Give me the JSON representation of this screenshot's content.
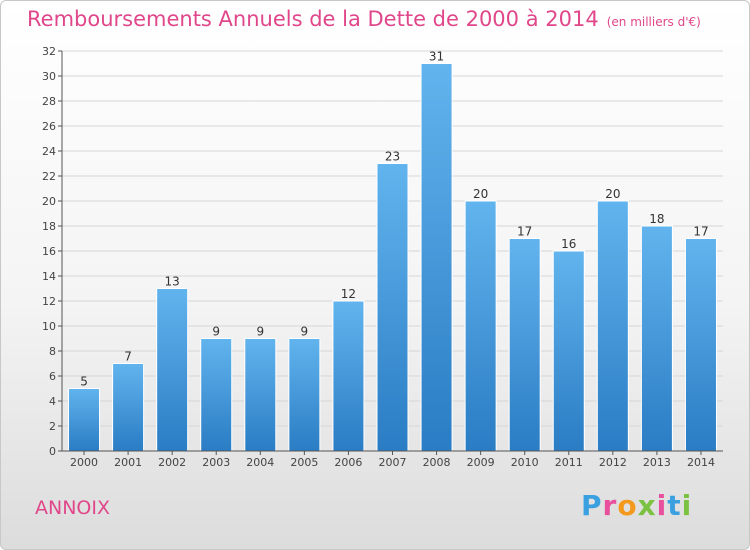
{
  "header": {
    "title": "Remboursements Annuels de la Dette de 2000 à 2014",
    "unit": "(en milliers d'€)"
  },
  "footer": {
    "town": "ANNOIX",
    "brand": "Proxiti",
    "brand_letters": [
      "P",
      "r",
      "o",
      "x",
      "i",
      "t",
      "i"
    ]
  },
  "colors": {
    "title": "#e0478a",
    "bar_top": "#62b4ee",
    "bar_bottom": "#2a7cc4",
    "grid": "#d6d6d6",
    "axis": "#555555"
  },
  "chart_data": {
    "type": "bar",
    "title": "Remboursements Annuels de la Dette de 2000 à 2014",
    "subtitle": "(en milliers d'€)",
    "xlabel": "",
    "ylabel": "",
    "categories": [
      "2000",
      "2001",
      "2002",
      "2003",
      "2004",
      "2005",
      "2006",
      "2007",
      "2008",
      "2009",
      "2010",
      "2011",
      "2012",
      "2013",
      "2014"
    ],
    "values": [
      5,
      7,
      13,
      9,
      9,
      9,
      12,
      23,
      31,
      20,
      17,
      16,
      20,
      18,
      17
    ],
    "ylim": [
      0,
      32
    ],
    "yticks": [
      0,
      2,
      4,
      6,
      8,
      10,
      12,
      14,
      16,
      18,
      20,
      22,
      24,
      26,
      28,
      30,
      32
    ],
    "grid": true,
    "legend": "none"
  }
}
